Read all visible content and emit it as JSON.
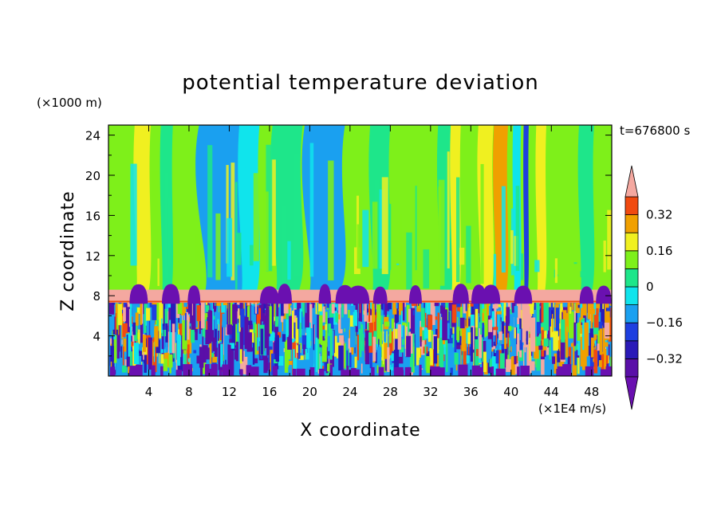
{
  "chart_data": {
    "type": "heatmap",
    "title": "potential temperature deviation",
    "xlabel": "X coordinate",
    "ylabel": "Z coordinate",
    "x_unit": "(×1E4 m/s)",
    "y_unit": "(×1000 m)",
    "time_label": "t=676800 s",
    "xlim": [
      0,
      50
    ],
    "ylim": [
      0,
      25
    ],
    "x_ticks": [
      4,
      8,
      12,
      16,
      20,
      24,
      28,
      32,
      36,
      40,
      44,
      48
    ],
    "y_ticks": [
      4,
      8,
      12,
      16,
      20,
      24
    ],
    "x_tick_labels": [
      "4",
      "8",
      "12",
      "16",
      "20",
      "24",
      "28",
      "32",
      "36",
      "40",
      "44",
      "48"
    ],
    "y_tick_labels": [
      "4",
      "8",
      "12",
      "16",
      "20",
      "24"
    ],
    "colorbar": {
      "levels": [
        -0.4,
        -0.32,
        -0.24,
        -0.16,
        -0.08,
        0,
        0.08,
        0.16,
        0.24,
        0.32,
        0.4
      ],
      "tick_labels": [
        "0.32",
        "0.16",
        "0",
        "−0.16",
        "−0.32"
      ],
      "tick_values": [
        0.32,
        0.16,
        0,
        -0.16,
        -0.32
      ],
      "colors": [
        "#5a0fa8",
        "#2a1ab8",
        "#1e3fe0",
        "#1aa0f0",
        "#10e4ec",
        "#1ee68a",
        "#7ef01a",
        "#f0f020",
        "#f0a000",
        "#f04a10",
        "#f04060"
      ],
      "over_color": "#f4a8a0",
      "under_color": "#6a10b0"
    },
    "bands": [
      {
        "z_from": 8.5,
        "z_to": 25,
        "description_values": "mostly 0 to 0.16"
      },
      {
        "z_from": 7.3,
        "z_to": 8.6,
        "value": "over 0.4"
      },
      {
        "z_from": 0,
        "z_to": 7.3,
        "value": "-0.4 to 0.4 turbulent"
      }
    ],
    "upper_columns": [
      {
        "x": 3.4,
        "w": 1.6,
        "v": 0.2
      },
      {
        "x": 5.8,
        "w": 1.2,
        "v": 0.02
      },
      {
        "x": 11.5,
        "w": 5.0,
        "v": -0.12
      },
      {
        "x": 14.0,
        "w": 2.0,
        "v": -0.06
      },
      {
        "x": 17.8,
        "w": 3.0,
        "v": 0.02
      },
      {
        "x": 21.5,
        "w": 4.0,
        "v": -0.12
      },
      {
        "x": 24.5,
        "w": 1.5,
        "v": 0.1
      },
      {
        "x": 27.0,
        "w": 2.0,
        "v": 0.02
      },
      {
        "x": 33.5,
        "w": 1.5,
        "v": 0.06
      },
      {
        "x": 34.5,
        "w": 1.0,
        "v": 0.2
      },
      {
        "x": 37.5,
        "w": 1.5,
        "v": 0.18
      },
      {
        "x": 39.0,
        "w": 1.4,
        "v": 0.26
      },
      {
        "x": 40.6,
        "w": 0.8,
        "v": -0.06
      },
      {
        "x": 41.5,
        "w": 0.5,
        "v": -0.2
      },
      {
        "x": 43.0,
        "w": 1.0,
        "v": 0.16
      },
      {
        "x": 47.5,
        "w": 1.5,
        "v": 0.06
      }
    ]
  }
}
